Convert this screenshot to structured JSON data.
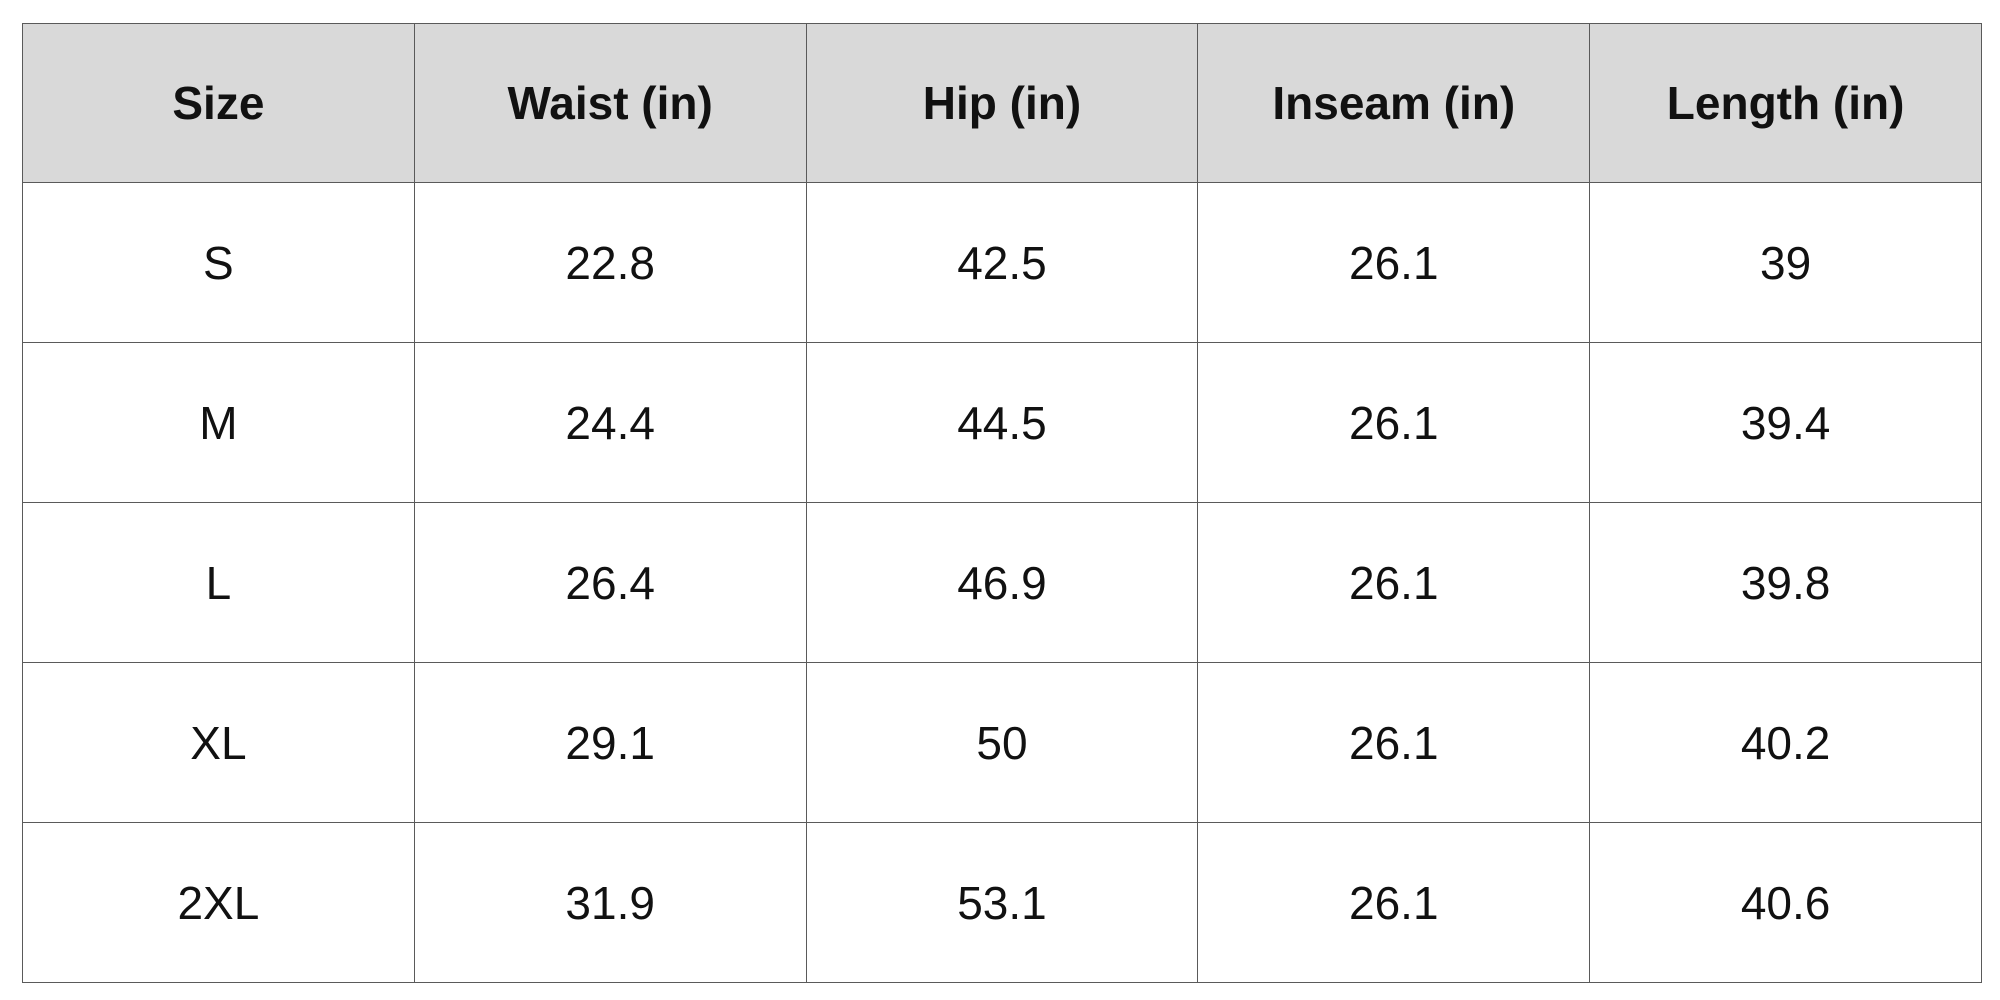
{
  "table": {
    "columns": [
      "Size",
      "Waist (in)",
      "Hip (in)",
      "Inseam (in)",
      "Length (in)"
    ],
    "rows": [
      [
        "S",
        "22.8",
        "42.5",
        "26.1",
        "39"
      ],
      [
        "M",
        "24.4",
        "44.5",
        "26.1",
        "39.4"
      ],
      [
        "L",
        "26.4",
        "46.9",
        "26.1",
        "39.8"
      ],
      [
        "XL",
        "29.1",
        "50",
        "26.1",
        "40.2"
      ],
      [
        "2XL",
        "31.9",
        "53.1",
        "26.1",
        "40.6"
      ]
    ]
  },
  "colors": {
    "header_background": "#d9d9d9",
    "border": "#5a5a5a",
    "text": "#111111"
  }
}
